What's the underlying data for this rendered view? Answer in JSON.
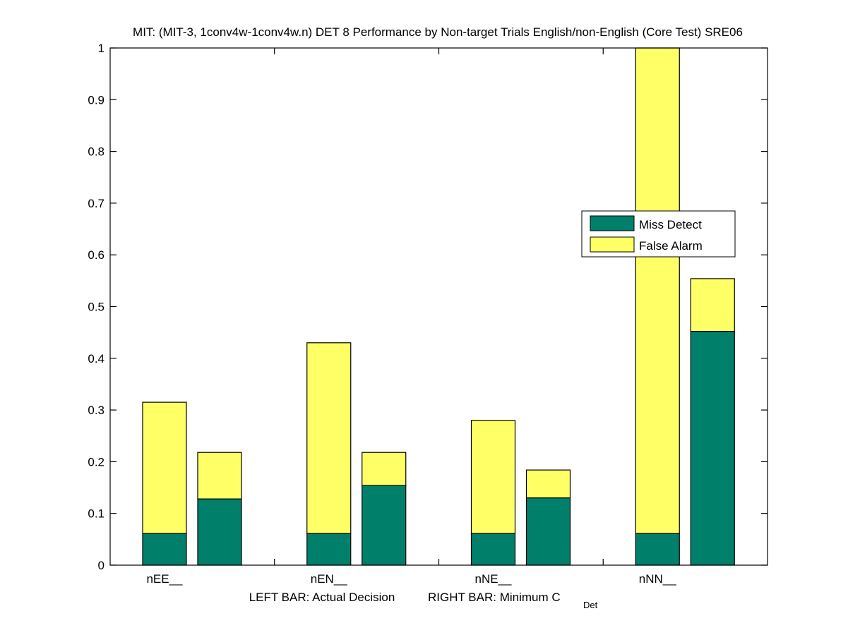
{
  "chart_data": {
    "type": "bar",
    "stacked": true,
    "title": "MIT: (MIT-3, 1conv4w-1conv4w.n) DET 8 Performance by Non-target Trials English/non-English (Core Test) SRE06",
    "xlabel_left": "LEFT BAR: Actual Decision",
    "xlabel_right_main": "RIGHT BAR: Minimum C",
    "xlabel_right_sub": "Det",
    "ylabel": "",
    "ylim": [
      0,
      1
    ],
    "yticks": [
      "0",
      "0.1",
      "0.2",
      "0.3",
      "0.4",
      "0.5",
      "0.6",
      "0.7",
      "0.8",
      "0.9",
      "1"
    ],
    "categories": [
      "nEE__",
      "nEN__",
      "nNE__",
      "nNN__"
    ],
    "bars_per_category": [
      "Actual Decision",
      "Minimum C_Det"
    ],
    "series": [
      {
        "name": "Miss Detect",
        "color": "#00806a",
        "actual_decision": [
          0.061,
          0.061,
          0.061,
          0.061
        ],
        "minimum_cdet": [
          0.128,
          0.154,
          0.13,
          0.452
        ]
      },
      {
        "name": "False Alarm",
        "color": "#ffff66",
        "actual_decision": [
          0.254,
          0.369,
          0.219,
          0.939
        ],
        "minimum_cdet": [
          0.09,
          0.064,
          0.054,
          0.102
        ]
      }
    ],
    "totals": {
      "actual_decision": [
        0.315,
        0.43,
        0.28,
        1.0
      ],
      "minimum_cdet": [
        0.218,
        0.218,
        0.184,
        0.554
      ]
    },
    "legend": {
      "entries": [
        "Miss Detect",
        "False Alarm"
      ],
      "placement": "right-middle"
    },
    "grid": false
  }
}
